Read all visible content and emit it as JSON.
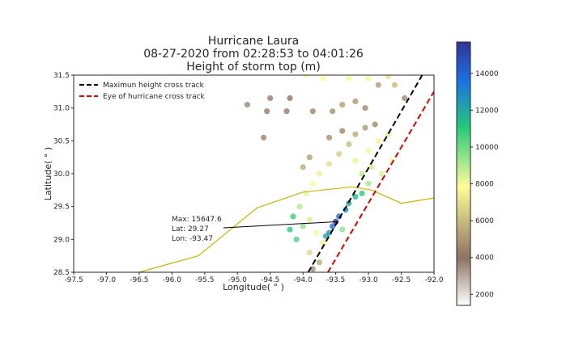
{
  "chart_data": {
    "type": "scatter",
    "title": [
      "Hurricane Laura",
      "08-27-2020 from 02:28:53 to 04:01:26",
      "Height of storm top (m)"
    ],
    "xlabel": "Longitude( ° )",
    "ylabel": "Latitude( ° )",
    "xlim": [
      -97.5,
      -92.0
    ],
    "ylim": [
      28.5,
      31.5
    ],
    "xticks": [
      "-97.5",
      "-97.0",
      "-96.5",
      "-96.0",
      "-95.5",
      "-95.0",
      "-94.5",
      "-94.0",
      "-93.5",
      "-93.0",
      "-92.5",
      "-92.0"
    ],
    "yticks": [
      "28.5",
      "29.0",
      "29.5",
      "30.0",
      "30.5",
      "31.0",
      "31.5"
    ],
    "grid": false,
    "legend_position": "top-left",
    "legend": [
      {
        "label": "Maximun height cross track",
        "color": "#000000",
        "style": "dashed"
      },
      {
        "label": "Eye of hurricane cross track",
        "color": "#e00000",
        "style": "dashed"
      }
    ],
    "max_height_track": [
      [
        -93.92,
        28.5
      ],
      [
        -92.18,
        31.5
      ]
    ],
    "eye_track": [
      [
        -93.62,
        28.5
      ],
      [
        -92.0,
        31.25
      ]
    ],
    "coastline_color": "#c8b400",
    "coastline": [
      [
        -96.5,
        28.5
      ],
      [
        -95.6,
        28.75
      ],
      [
        -94.7,
        29.48
      ],
      [
        -94.0,
        29.72
      ],
      [
        -93.25,
        29.8
      ],
      [
        -92.95,
        29.75
      ],
      [
        -92.5,
        29.55
      ],
      [
        -92.0,
        29.63
      ]
    ],
    "annotation": {
      "text": [
        "Max: 15647.6",
        "Lat: 29.27",
        "Lon: -93.47"
      ],
      "point": [
        -93.47,
        29.27
      ],
      "text_position": [
        -96.0,
        29.2
      ]
    },
    "colorbar": {
      "range": [
        1400,
        15700
      ],
      "ticks": [
        "2000",
        "4000",
        "6000",
        "8000",
        "10000",
        "12000",
        "14000"
      ],
      "tick_values": [
        2000,
        4000,
        6000,
        8000,
        10000,
        12000,
        14000
      ],
      "colormap": "terrain_r",
      "stops": [
        "#ffffff",
        "#8c7361",
        "#fefd98",
        "#23c87b",
        "#1b72e4",
        "#333398"
      ]
    },
    "storm_cloud": {
      "description_units": "data units: lon, lat, height (m)",
      "band_points": [
        [
          -94.1,
          29.0,
          10500
        ],
        [
          -94.0,
          29.2,
          9500
        ],
        [
          -93.9,
          29.3,
          8500
        ],
        [
          -94.15,
          29.35,
          10800
        ],
        [
          -94.2,
          29.15,
          11000
        ],
        [
          -94.05,
          29.5,
          9000
        ],
        [
          -93.8,
          29.1,
          8000
        ],
        [
          -93.7,
          28.95,
          7500
        ],
        [
          -93.9,
          28.8,
          6800
        ],
        [
          -93.75,
          28.65,
          5500
        ],
        [
          -93.85,
          28.55,
          4800
        ],
        [
          -93.5,
          29.27,
          15647.6
        ],
        [
          -93.45,
          29.35,
          14000
        ],
        [
          -93.55,
          29.2,
          13500
        ],
        [
          -93.35,
          29.45,
          13000
        ],
        [
          -93.6,
          29.1,
          12500
        ],
        [
          -93.3,
          29.55,
          12000
        ],
        [
          -93.2,
          29.65,
          11500
        ],
        [
          -93.1,
          29.7,
          11000
        ],
        [
          -93.65,
          29.05,
          12000
        ],
        [
          -93.4,
          29.15,
          9500
        ],
        [
          -93.95,
          29.7,
          8200
        ],
        [
          -93.85,
          29.85,
          7800
        ],
        [
          -93.75,
          30.0,
          7400
        ],
        [
          -93.6,
          30.15,
          7000
        ],
        [
          -93.45,
          30.3,
          6500
        ],
        [
          -93.3,
          30.45,
          6000
        ],
        [
          -93.2,
          30.6,
          5500
        ],
        [
          -93.05,
          30.7,
          5000
        ],
        [
          -92.9,
          30.75,
          4600
        ],
        [
          -93.9,
          30.25,
          5200
        ],
        [
          -94.0,
          30.1,
          5600
        ],
        [
          -93.6,
          30.55,
          4800
        ],
        [
          -93.4,
          30.65,
          4500
        ],
        [
          -93.2,
          30.2,
          8200
        ],
        [
          -93.0,
          30.35,
          8000
        ],
        [
          -92.85,
          30.5,
          7600
        ],
        [
          -92.7,
          30.6,
          7200
        ],
        [
          -93.1,
          30.0,
          8800
        ],
        [
          -92.95,
          30.1,
          8600
        ],
        [
          -93.0,
          29.85,
          9200
        ],
        [
          -92.8,
          30.0,
          8400
        ],
        [
          -92.65,
          30.2,
          7800
        ]
      ],
      "scattered_points": [
        [
          -93.95,
          31.5,
          7500
        ],
        [
          -93.7,
          31.45,
          7800
        ],
        [
          -93.3,
          31.45,
          8000
        ],
        [
          -93.0,
          31.45,
          7600
        ],
        [
          -92.7,
          31.48,
          7000
        ],
        [
          -92.6,
          31.35,
          6000
        ],
        [
          -92.85,
          31.35,
          5200
        ],
        [
          -92.45,
          31.15,
          4600
        ],
        [
          -93.2,
          31.1,
          5000
        ],
        [
          -93.05,
          31.0,
          4500
        ],
        [
          -93.4,
          31.05,
          5200
        ],
        [
          -93.55,
          30.95,
          4800
        ],
        [
          -93.85,
          30.95,
          4500
        ],
        [
          -94.25,
          30.95,
          4200
        ],
        [
          -94.2,
          31.15,
          4000
        ],
        [
          -94.55,
          30.95,
          4200
        ],
        [
          -94.5,
          31.15,
          3800
        ],
        [
          -94.85,
          31.05,
          3600
        ],
        [
          -94.6,
          30.55,
          4400
        ]
      ]
    }
  }
}
